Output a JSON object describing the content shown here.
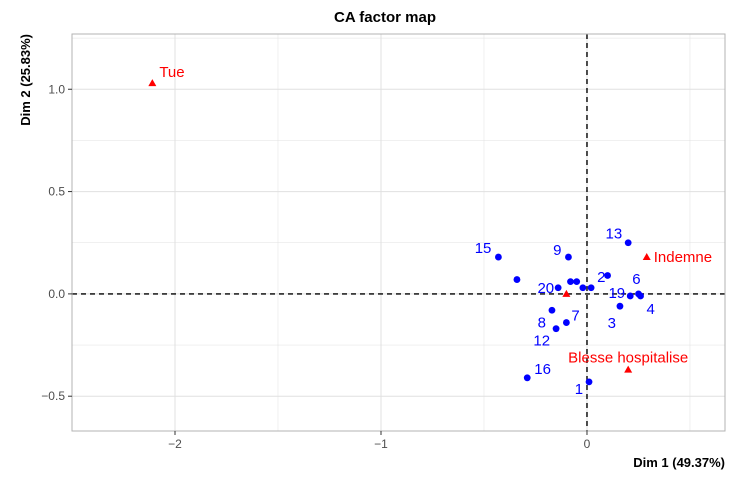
{
  "chart_data": {
    "type": "scatter",
    "title": "CA factor map",
    "xlabel": "Dim 1 (49.37%)",
    "ylabel": "Dim 2 (25.83%)",
    "xlim": [
      -2.5,
      0.67
    ],
    "ylim": [
      -0.67,
      1.27
    ],
    "xticks": [
      -2,
      -1,
      0
    ],
    "xtick_labels": [
      "−2",
      "−1",
      "0"
    ],
    "yticks": [
      -0.5,
      0.0,
      0.5,
      1.0
    ],
    "ytick_labels": [
      "−0.5",
      "0.0",
      "0.5",
      "1.0"
    ],
    "grid": true,
    "reference_lines": {
      "x": 0,
      "y": 0,
      "style": "dashed"
    },
    "colors": {
      "rows": "#0000ff",
      "columns": "#ff0000",
      "grid": "#e0e0e0",
      "panel_border": "#b3b3b3"
    },
    "series": [
      {
        "marker": "circle",
        "color": "#0000ff",
        "points": [
          {
            "label": "1",
            "x": 0.01,
            "y": -0.43
          },
          {
            "label": "2",
            "x": 0.02,
            "y": 0.03
          },
          {
            "label": "3",
            "x": 0.16,
            "y": -0.06
          },
          {
            "label": "4",
            "x": 0.26,
            "y": -0.01
          },
          {
            "label": "6",
            "x": 0.21,
            "y": -0.01
          },
          {
            "label": "7",
            "x": -0.1,
            "y": -0.14
          },
          {
            "label": "8",
            "x": -0.17,
            "y": -0.08
          },
          {
            "label": "9",
            "x": -0.09,
            "y": 0.18
          },
          {
            "label": "12",
            "x": -0.15,
            "y": -0.17
          },
          {
            "label": "13",
            "x": 0.2,
            "y": 0.25
          },
          {
            "label": "15",
            "x": -0.43,
            "y": 0.18
          },
          {
            "label": "16",
            "x": -0.29,
            "y": -0.41
          },
          {
            "label": "19",
            "x": 0.25,
            "y": 0.0
          },
          {
            "label": "20",
            "x": -0.14,
            "y": 0.03
          }
        ],
        "unlabeled_points": [
          {
            "x": -0.34,
            "y": 0.07
          },
          {
            "x": -0.08,
            "y": 0.06
          },
          {
            "x": -0.05,
            "y": 0.06
          },
          {
            "x": -0.02,
            "y": 0.03
          },
          {
            "x": 0.1,
            "y": 0.09
          }
        ]
      },
      {
        "marker": "triangle",
        "color": "#ff0000",
        "points": [
          {
            "label": "Tue",
            "x": -2.11,
            "y": 1.03
          },
          {
            "label": "Indemne",
            "x": 0.29,
            "y": 0.18
          },
          {
            "label": "Blesse hospitalise",
            "x": 0.2,
            "y": -0.37
          },
          {
            "label": "",
            "x": -0.1,
            "y": 0.0
          }
        ]
      }
    ]
  }
}
